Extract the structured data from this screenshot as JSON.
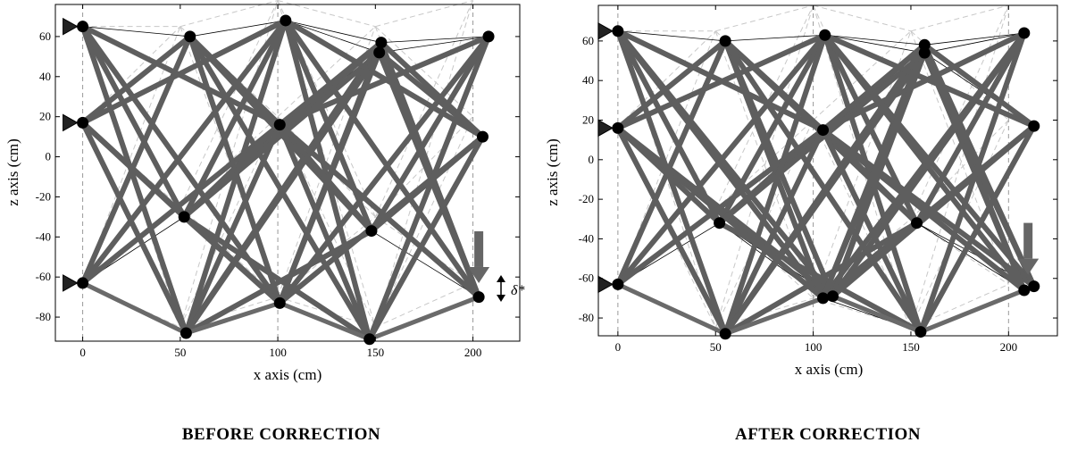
{
  "panels": [
    {
      "xlabel": "x axis (cm)",
      "ylabel": "z axis (cm)",
      "caption": "BEFORE CORRECTION",
      "annotation": "δ*",
      "xticks": [
        0,
        50,
        100,
        150,
        200
      ],
      "yticks": [
        60,
        40,
        20,
        0,
        -20,
        -40,
        -60,
        -80
      ],
      "xlim": [
        -14,
        224
      ],
      "ylim": [
        -92,
        76
      ],
      "nodes": [
        [
          0,
          65
        ],
        [
          0,
          17
        ],
        [
          0,
          -63
        ],
        [
          55,
          60
        ],
        [
          52,
          -30
        ],
        [
          53,
          -88
        ],
        [
          104,
          68
        ],
        [
          101,
          16
        ],
        [
          101,
          -73
        ],
        [
          153,
          57
        ],
        [
          152,
          52
        ],
        [
          148,
          -37
        ],
        [
          147,
          -91
        ],
        [
          208,
          60
        ],
        [
          205,
          10
        ],
        [
          203,
          -70
        ]
      ],
      "supports": [
        [
          0,
          65
        ],
        [
          0,
          17
        ],
        [
          0,
          -63
        ]
      ],
      "load_at": [
        203,
        -55
      ],
      "original_nodes": [
        [
          0,
          65
        ],
        [
          0,
          17
        ],
        [
          0,
          -63
        ],
        [
          50,
          65
        ],
        [
          50,
          -25
        ],
        [
          50,
          -85
        ],
        [
          100,
          78
        ],
        [
          100,
          20
        ],
        [
          100,
          -70
        ],
        [
          150,
          65
        ],
        [
          150,
          -30
        ],
        [
          150,
          -85
        ],
        [
          200,
          78
        ],
        [
          200,
          20
        ],
        [
          200,
          -63
        ]
      ]
    },
    {
      "xlabel": "x axis (cm)",
      "ylabel": "z axis (cm)",
      "caption": "AFTER CORRECTION",
      "xticks": [
        0,
        50,
        100,
        150,
        200
      ],
      "yticks": [
        60,
        40,
        20,
        0,
        -20,
        -40,
        -60,
        -80
      ],
      "xlim": [
        -10,
        225
      ],
      "ylim": [
        -89,
        78
      ],
      "nodes": [
        [
          0,
          65
        ],
        [
          0,
          16
        ],
        [
          0,
          -63
        ],
        [
          55,
          60
        ],
        [
          52,
          -32
        ],
        [
          55,
          -88
        ],
        [
          106,
          63
        ],
        [
          105,
          15
        ],
        [
          105,
          -70
        ],
        [
          110,
          -69
        ],
        [
          157,
          58
        ],
        [
          157,
          54
        ],
        [
          153,
          -32
        ],
        [
          155,
          -87
        ],
        [
          208,
          64
        ],
        [
          213,
          17
        ],
        [
          208,
          -66
        ],
        [
          213,
          -64
        ]
      ],
      "supports": [
        [
          0,
          65
        ],
        [
          0,
          16
        ],
        [
          0,
          -63
        ]
      ],
      "load_at": [
        210,
        -50
      ],
      "original_nodes": [
        [
          0,
          65
        ],
        [
          0,
          17
        ],
        [
          0,
          -63
        ],
        [
          50,
          65
        ],
        [
          50,
          -25
        ],
        [
          50,
          -85
        ],
        [
          100,
          78
        ],
        [
          100,
          20
        ],
        [
          100,
          -70
        ],
        [
          150,
          65
        ],
        [
          150,
          -30
        ],
        [
          150,
          -85
        ],
        [
          200,
          78
        ],
        [
          200,
          20
        ],
        [
          200,
          -63
        ]
      ]
    }
  ]
}
